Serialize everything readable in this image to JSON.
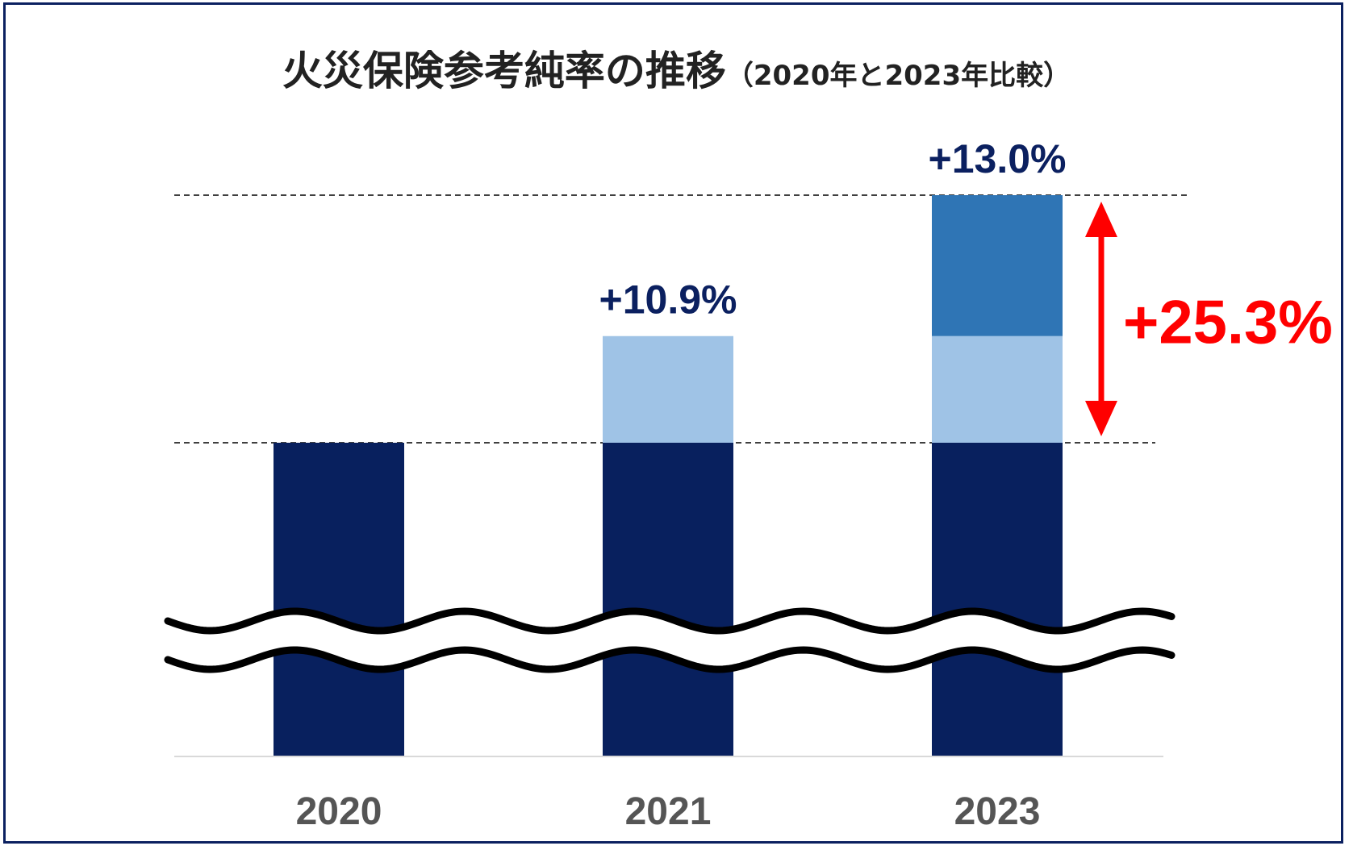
{
  "title": "火災保険参考純率の推移",
  "subtitle": "（2020年と2023年比較）",
  "colors": {
    "frame": "#0b2060",
    "base": "#08205e",
    "increase_2021": "#9fc3e6",
    "increase_2023": "#2f75b5",
    "labels": "#0b2060",
    "highlight": "#ff0000",
    "ticks": "#555555"
  },
  "chart_data": {
    "type": "bar",
    "stacked": true,
    "axis_break": true,
    "categories": [
      "2020",
      "2021",
      "2023"
    ],
    "series": [
      {
        "values": [
          100,
          100,
          100
        ],
        "color": "#08205e"
      },
      {
        "values": [
          0,
          10.9,
          10.9
        ],
        "color": "#9fc3e6"
      },
      {
        "values": [
          0,
          0,
          14.4
        ],
        "color": "#2f75b5"
      }
    ],
    "data_labels": [
      "",
      "+10.9%",
      "+13.0%"
    ],
    "reference_lines": [
      100,
      125.3
    ],
    "annotation": {
      "label": "+25.3%",
      "from": 100,
      "to": 125.3
    },
    "grid": false
  }
}
